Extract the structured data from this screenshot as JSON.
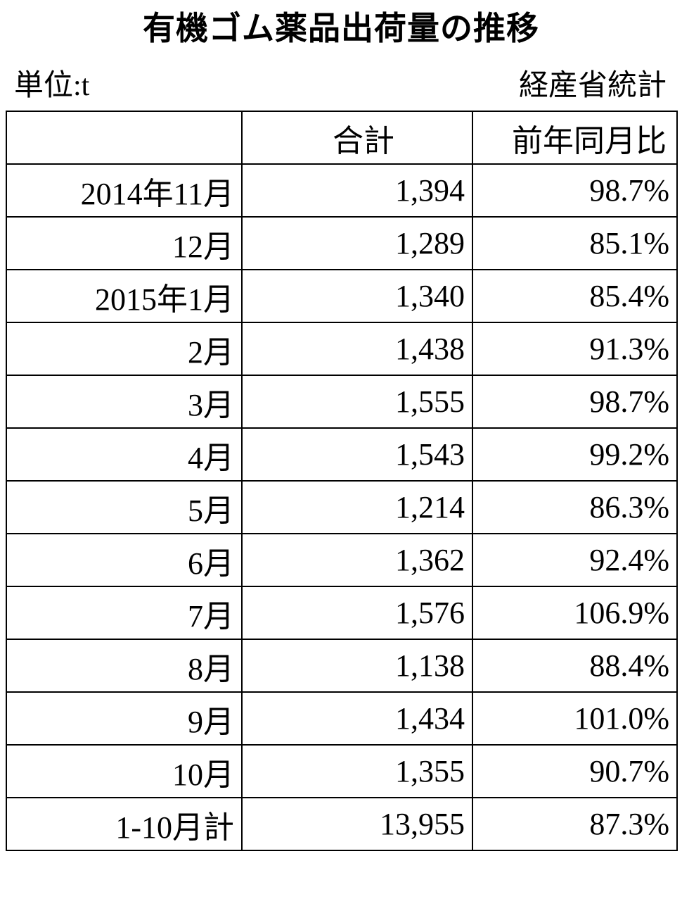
{
  "header": {
    "title": "有機ゴム薬品出荷量の推移",
    "unit": "単位:t",
    "source": "経産省統計"
  },
  "table": {
    "columns": [
      "合計",
      "前年同月比"
    ],
    "rows": [
      [
        "2014年11月",
        "1,394",
        "98.7%"
      ],
      [
        "12月",
        "1,289",
        "85.1%"
      ],
      [
        "2015年1月",
        "1,340",
        "85.4%"
      ],
      [
        "2月",
        "1,438",
        "91.3%"
      ],
      [
        "3月",
        "1,555",
        "98.7%"
      ],
      [
        "4月",
        "1,543",
        "99.2%"
      ],
      [
        "5月",
        "1,214",
        "86.3%"
      ],
      [
        "6月",
        "1,362",
        "92.4%"
      ],
      [
        "7月",
        "1,576",
        "106.9%"
      ],
      [
        "8月",
        "1,138",
        "88.4%"
      ],
      [
        "9月",
        "1,434",
        "101.0%"
      ],
      [
        "10月",
        "1,355",
        "90.7%"
      ],
      [
        "1-10月計",
        "13,955",
        "87.3%"
      ]
    ]
  }
}
